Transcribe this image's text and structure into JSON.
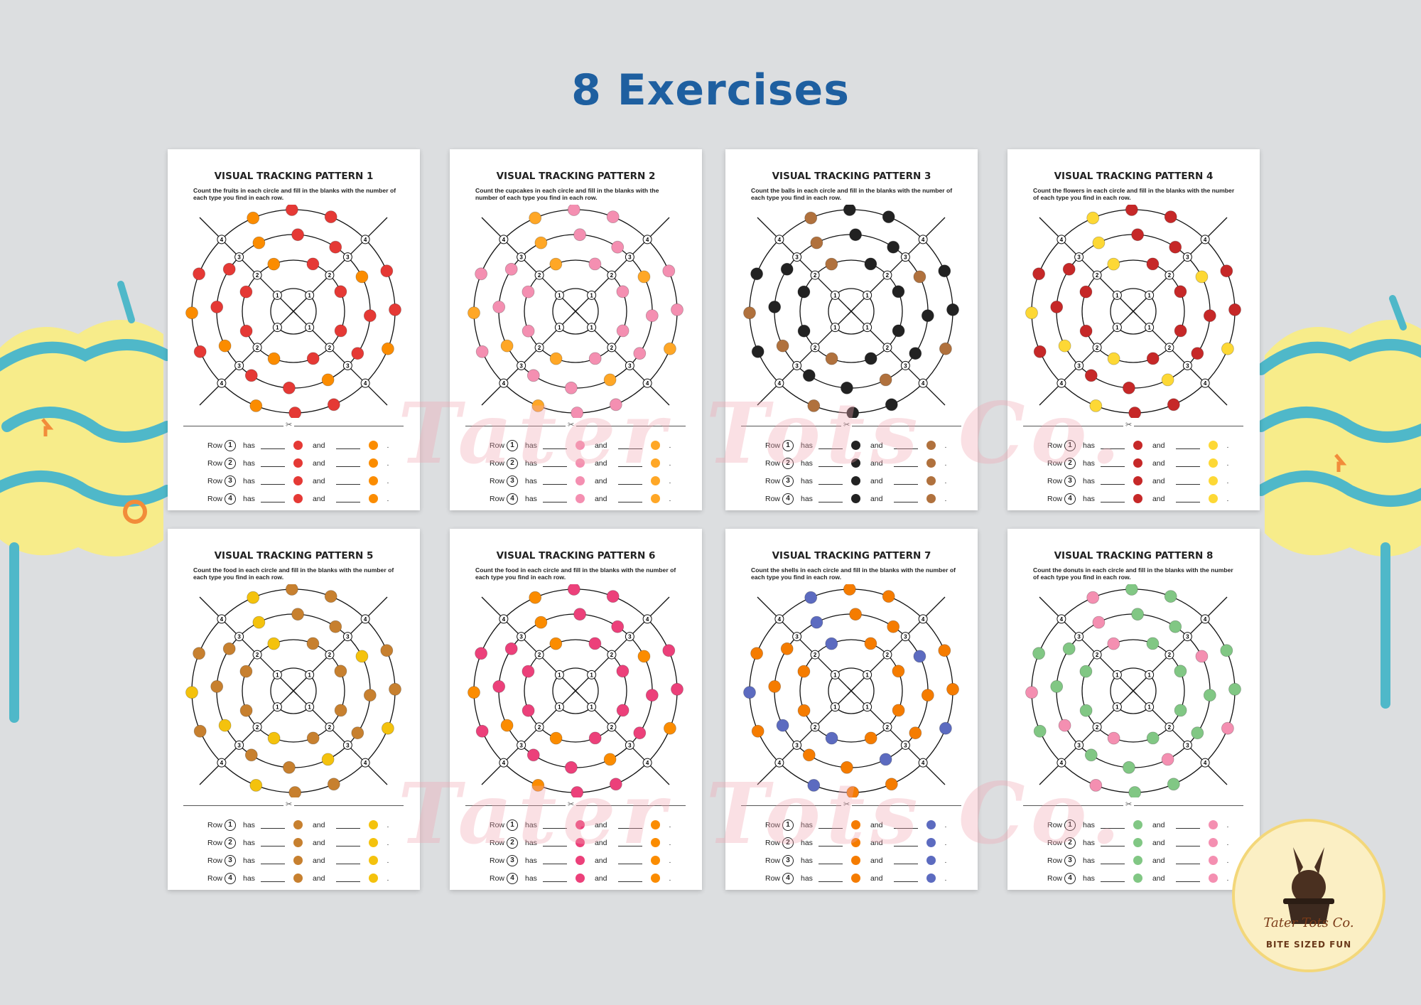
{
  "headline": "8 Exercises",
  "watermark": "Tater Tots Co.",
  "brand": {
    "name": "Tater Tots Co.",
    "tagline": "BITE SIZED FUN"
  },
  "sheets": [
    {
      "title": "VISUAL TRACKING PATTERN 1",
      "instruction": "Count the fruits in each circle and fill in the blanks with the number of each type you find in each row.",
      "item_a": "apple-icon",
      "item_b": "orange-icon",
      "color_a": "#e53935",
      "color_b": "#fb8c00"
    },
    {
      "title": "VISUAL TRACKING PATTERN 2",
      "instruction": "Count the cupcakes in each circle and fill in the blanks with the number of each type you find in each row.",
      "item_a": "pink-cupcake-icon",
      "item_b": "orange-cupcake-icon",
      "color_a": "#f48fb1",
      "color_b": "#ffa726"
    },
    {
      "title": "VISUAL TRACKING PATTERN 3",
      "instruction": "Count the balls in each circle and fill in the blanks with the number of each type you find in each row.",
      "item_a": "soccer-ball-icon",
      "item_b": "football-icon",
      "color_a": "#222222",
      "color_b": "#b0713d"
    },
    {
      "title": "VISUAL TRACKING PATTERN 4",
      "instruction": "Count the flowers in each circle and fill in the blanks with the number of each type you find in each row.",
      "item_a": "rose-icon",
      "item_b": "sunflower-icon",
      "color_a": "#c62828",
      "color_b": "#fdd835"
    },
    {
      "title": "VISUAL TRACKING PATTERN 5",
      "instruction": "Count the food in each circle and fill in the blanks with the number of each type you find in each row.",
      "item_a": "burger-icon",
      "item_b": "fries-icon",
      "color_a": "#c7802f",
      "color_b": "#f4c20d"
    },
    {
      "title": "VISUAL TRACKING PATTERN 6",
      "instruction": "Count the food in each circle and fill in the blanks with the number of each type you find in each row.",
      "item_a": "ice-cream-cone-icon",
      "item_b": "popsicle-icon",
      "color_a": "#ec407a",
      "color_b": "#fb8c00"
    },
    {
      "title": "VISUAL TRACKING PATTERN 7",
      "instruction": "Count the shells in each circle and fill in the blanks with the number of each type you find in each row.",
      "item_a": "scallop-shell-icon",
      "item_b": "spiral-shell-icon",
      "color_a": "#f57c00",
      "color_b": "#5c6bc0"
    },
    {
      "title": "VISUAL TRACKING PATTERN 8",
      "instruction": "Count the donuts in each circle and fill in the blanks with the number of each type you find in each row.",
      "item_a": "green-donut-icon",
      "item_b": "pink-donut-icon",
      "color_a": "#81c784",
      "color_b": "#f48fb1"
    }
  ],
  "row_labels": {
    "row": "Row",
    "has": "has",
    "and": "and",
    "end": "."
  },
  "row_numbers": [
    "1",
    "2",
    "3",
    "4"
  ]
}
